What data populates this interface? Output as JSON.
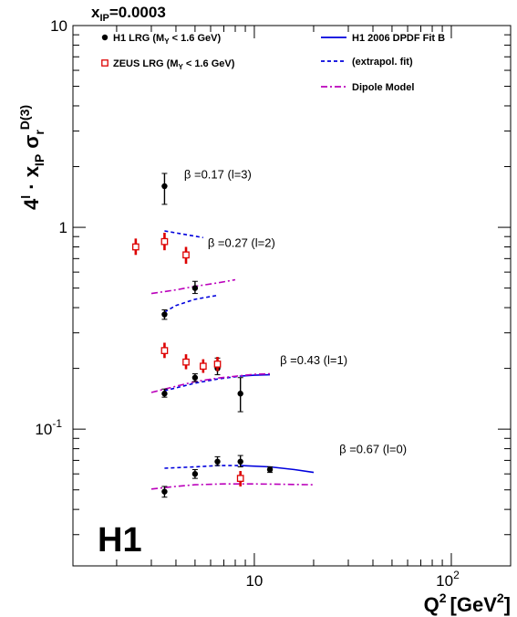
{
  "chart_data": {
    "type": "scatter",
    "title": "x_IP=0.0003",
    "title_main": "x",
    "title_sub": "IP",
    "title_value": "=0.0003",
    "logo": "H1",
    "xlabel": "Q² [GeV²]",
    "xlabel_main": "Q",
    "xlabel_sup": "2",
    "xlabel_unit_open": "[GeV",
    "xlabel_unit_sup": "2",
    "xlabel_unit_close": "]",
    "ylabel": "4^l · x_IP σ_r^D(3)",
    "ylabel_parts": {
      "a": "4",
      "a_sup": "l",
      "b": " · x",
      "b_sub": "IP",
      "c": " σ",
      "c_sub": "r",
      "c_sup": "D(3)"
    },
    "x_scale": "log",
    "y_scale": "log",
    "xlim": [
      1.2,
      200
    ],
    "ylim": [
      0.021,
      10
    ],
    "x_ticks": [
      {
        "value": 10,
        "label": "10"
      },
      {
        "value": 100,
        "label": "10",
        "sup": "2"
      }
    ],
    "y_ticks": [
      {
        "value": 0.1,
        "label": "10",
        "sup": "-1"
      },
      {
        "value": 1,
        "label": "1"
      },
      {
        "value": 10,
        "label": "10"
      }
    ],
    "grid": false,
    "legend": {
      "placement": "top",
      "entries": [
        {
          "label": "H1 LRG (M",
          "sub": "Y",
          "rest": " < 1.6 GeV)",
          "marker": "dot",
          "color": "#000000"
        },
        {
          "label": "ZEUS LRG (M",
          "sub": "Y",
          "rest": " < 1.6 GeV)",
          "marker": "open-square",
          "color": "#dd0000"
        },
        {
          "label": "H1 2006 DPDF Fit B",
          "line": "solid",
          "color": "#0000dd"
        },
        {
          "label": "(extrapol. fit)",
          "line": "dashed",
          "color": "#0000dd"
        },
        {
          "label": "Dipole Model",
          "line": "dashdot",
          "color": "#bb00bb"
        }
      ]
    },
    "annotations": [
      {
        "text": "β =0.17 (l=3)",
        "x": 4.4,
        "y": 1.75
      },
      {
        "text": "β =0.27 (l=2)",
        "x": 5.8,
        "y": 0.8
      },
      {
        "text": "β =0.43 (l=1)",
        "x": 13.5,
        "y": 0.21
      },
      {
        "text": "β =0.67 (l=0)",
        "x": 27,
        "y": 0.076
      }
    ],
    "series": [
      {
        "name": "H1 LRG (M_Y < 1.6 GeV)",
        "marker": "dot",
        "color": "#000000",
        "points": [
          {
            "x": 3.5,
            "y": 1.6,
            "ylo": 1.3,
            "yhi": 1.85
          },
          {
            "x": 3.5,
            "y": 0.37,
            "ylo": 0.35,
            "yhi": 0.39
          },
          {
            "x": 5,
            "y": 0.5,
            "ylo": 0.47,
            "yhi": 0.54
          },
          {
            "x": 3.5,
            "y": 0.15,
            "ylo": 0.144,
            "yhi": 0.158
          },
          {
            "x": 5,
            "y": 0.18,
            "ylo": 0.172,
            "yhi": 0.188
          },
          {
            "x": 6.5,
            "y": 0.2,
            "ylo": 0.186,
            "yhi": 0.225
          },
          {
            "x": 8.5,
            "y": 0.15,
            "ylo": 0.122,
            "yhi": 0.18
          },
          {
            "x": 3.5,
            "y": 0.049,
            "ylo": 0.046,
            "yhi": 0.052
          },
          {
            "x": 5,
            "y": 0.06,
            "ylo": 0.057,
            "yhi": 0.063
          },
          {
            "x": 6.5,
            "y": 0.069,
            "ylo": 0.066,
            "yhi": 0.073
          },
          {
            "x": 8.5,
            "y": 0.069,
            "ylo": 0.065,
            "yhi": 0.074
          },
          {
            "x": 12,
            "y": 0.063,
            "ylo": 0.061,
            "yhi": 0.065
          }
        ]
      },
      {
        "name": "ZEUS LRG (M_Y < 1.6 GeV)",
        "marker": "open-square",
        "color": "#dd0000",
        "points": [
          {
            "x": 2.5,
            "y": 0.8,
            "ylo": 0.73,
            "yhi": 0.88
          },
          {
            "x": 3.5,
            "y": 0.85,
            "ylo": 0.77,
            "yhi": 0.94
          },
          {
            "x": 4.5,
            "y": 0.73,
            "ylo": 0.66,
            "yhi": 0.8
          },
          {
            "x": 3.5,
            "y": 0.245,
            "ylo": 0.225,
            "yhi": 0.268
          },
          {
            "x": 4.5,
            "y": 0.215,
            "ylo": 0.198,
            "yhi": 0.235
          },
          {
            "x": 5.5,
            "y": 0.205,
            "ylo": 0.19,
            "yhi": 0.222
          },
          {
            "x": 6.5,
            "y": 0.21,
            "ylo": 0.194,
            "yhi": 0.228
          },
          {
            "x": 8.5,
            "y": 0.057,
            "ylo": 0.052,
            "yhi": 0.062
          }
        ]
      }
    ],
    "curves": [
      {
        "name": "H1 2006 DPDF Fit B",
        "style": "solid",
        "color": "#0000dd",
        "x": [
          8.5,
          10,
          12
        ],
        "y": [
          0.183,
          0.185,
          0.186
        ]
      },
      {
        "name": "H1 2006 DPDF Fit B",
        "style": "solid",
        "color": "#0000dd",
        "x": [
          8.5,
          12,
          16,
          20
        ],
        "y": [
          0.066,
          0.065,
          0.063,
          0.061
        ]
      },
      {
        "name": "(extrapol. fit)",
        "style": "dashed",
        "color": "#0000dd",
        "x": [
          3.5,
          4.5,
          5.5
        ],
        "y": [
          0.96,
          0.92,
          0.89
        ]
      },
      {
        "name": "(extrapol. fit)",
        "style": "dashed",
        "color": "#0000dd",
        "x": [
          3.5,
          4,
          5,
          6.5
        ],
        "y": [
          0.38,
          0.41,
          0.44,
          0.46
        ]
      },
      {
        "name": "(extrapol. fit)",
        "style": "dashed",
        "color": "#0000dd",
        "x": [
          3.5,
          5,
          6.5,
          8.5
        ],
        "y": [
          0.155,
          0.169,
          0.177,
          0.183
        ]
      },
      {
        "name": "(extrapol. fit)",
        "style": "dashed",
        "color": "#0000dd",
        "x": [
          3.5,
          5,
          6.5,
          8.5
        ],
        "y": [
          0.064,
          0.065,
          0.066,
          0.066
        ]
      },
      {
        "name": "Dipole Model",
        "style": "dashdot",
        "color": "#bb00bb",
        "x": [
          3,
          4,
          5,
          6.5,
          8
        ],
        "y": [
          0.47,
          0.49,
          0.51,
          0.53,
          0.55
        ]
      },
      {
        "name": "Dipole Model",
        "style": "dashdot",
        "color": "#bb00bb",
        "x": [
          3,
          4,
          5,
          6.5,
          8.5,
          10,
          12
        ],
        "y": [
          0.152,
          0.163,
          0.172,
          0.179,
          0.184,
          0.187,
          0.188
        ]
      },
      {
        "name": "Dipole Model",
        "style": "dashdot",
        "color": "#bb00bb",
        "x": [
          3,
          4,
          5,
          7,
          10,
          14,
          20
        ],
        "y": [
          0.0505,
          0.052,
          0.053,
          0.0535,
          0.0535,
          0.0533,
          0.053
        ]
      }
    ]
  }
}
